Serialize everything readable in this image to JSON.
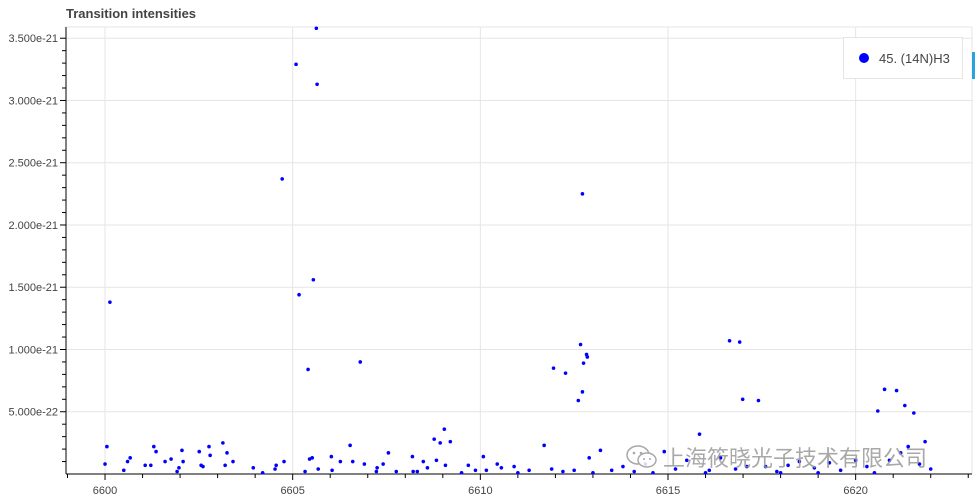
{
  "chart_data": {
    "type": "scatter",
    "title": "Transition intensities",
    "xlabel": "",
    "ylabel": "",
    "xlim": [
      6598.96,
      6623.1
    ],
    "ylim": [
      0,
      3.59e-21
    ],
    "grid": true,
    "legend_placement": "top-right",
    "x_ticks": [
      6600,
      6605,
      6610,
      6615,
      6620
    ],
    "x_tick_labels": [
      "6600",
      "6605",
      "6610",
      "6615",
      "6620"
    ],
    "y_ticks": [
      5e-22,
      1e-21,
      1.5e-21,
      2e-21,
      2.5e-21,
      3e-21,
      3.5e-21
    ],
    "y_tick_labels": [
      "5.000e-22",
      "1.000e-21",
      "1.500e-21",
      "2.000e-21",
      "2.500e-21",
      "3.000e-21",
      "3.500e-21"
    ],
    "series": [
      {
        "name": "45. (14N)H3",
        "color": "#0000ff",
        "points": [
          [
            6600.13,
            1.38e-21
          ],
          [
            6600.05,
            2.2e-22
          ],
          [
            6605.09,
            3.29e-21
          ],
          [
            6605.63,
            3.58e-21
          ],
          [
            6605.65,
            3.13e-21
          ],
          [
            6604.72,
            2.37e-21
          ],
          [
            6605.17,
            1.44e-21
          ],
          [
            6605.55,
            1.56e-21
          ],
          [
            6605.41,
            8.4e-22
          ],
          [
            6606.8,
            9e-22
          ],
          [
            6612.72,
            2.25e-21
          ],
          [
            6611.95,
            8.5e-22
          ],
          [
            6612.27,
            8.1e-22
          ],
          [
            6612.67,
            1.04e-21
          ],
          [
            6612.83,
            9.6e-22
          ],
          [
            6612.85,
            9.4e-22
          ],
          [
            6612.72,
            6.6e-22
          ],
          [
            6612.61,
            5.9e-22
          ],
          [
            6612.75,
            8.9e-22
          ],
          [
            6616.64,
            1.07e-21
          ],
          [
            6616.91,
            1.06e-21
          ],
          [
            6616.99,
            6e-22
          ],
          [
            6617.41,
            5.9e-22
          ],
          [
            6620.59,
            5.06e-22
          ],
          [
            6620.77,
            6.8e-22
          ],
          [
            6621.09,
            6.7e-22
          ],
          [
            6621.31,
            5.5e-22
          ],
          [
            6621.55,
            4.9e-22
          ],
          [
            6615.84,
            3.2e-22
          ],
          [
            6600.0,
            8e-23
          ],
          [
            6600.5,
            3e-23
          ],
          [
            6600.6,
            1e-22
          ],
          [
            6600.67,
            1.3e-22
          ],
          [
            6601.07,
            7e-23
          ],
          [
            6601.22,
            7e-23
          ],
          [
            6601.3,
            2.2e-22
          ],
          [
            6601.36,
            1.8e-22
          ],
          [
            6601.6,
            1e-22
          ],
          [
            6601.76,
            1.2e-22
          ],
          [
            6601.92,
            2e-23
          ],
          [
            6601.97,
            5e-23
          ],
          [
            6602.05,
            1.9e-22
          ],
          [
            6602.08,
            1e-22
          ],
          [
            6602.51,
            1.8e-22
          ],
          [
            6602.56,
            7e-23
          ],
          [
            6602.61,
            6e-23
          ],
          [
            6602.77,
            2.2e-22
          ],
          [
            6602.8,
            1.5e-22
          ],
          [
            6603.14,
            2.5e-22
          ],
          [
            6603.2,
            7e-23
          ],
          [
            6603.25,
            1.7e-22
          ],
          [
            6603.41,
            1e-22
          ],
          [
            6603.95,
            5e-23
          ],
          [
            6604.53,
            4e-23
          ],
          [
            6604.56,
            7e-23
          ],
          [
            6604.77,
            1e-22
          ],
          [
            6605.33,
            2e-23
          ],
          [
            6605.45,
            1.2e-22
          ],
          [
            6605.52,
            1.3e-22
          ],
          [
            6605.68,
            4e-23
          ],
          [
            6606.03,
            1.4e-22
          ],
          [
            6606.05,
            3e-23
          ],
          [
            6606.27,
            1e-22
          ],
          [
            6606.53,
            2.3e-22
          ],
          [
            6606.6,
            1e-22
          ],
          [
            6606.91,
            8e-23
          ],
          [
            6607.23,
            2e-23
          ],
          [
            6607.25,
            5e-23
          ],
          [
            6607.41,
            8e-23
          ],
          [
            6607.55,
            1.7e-22
          ],
          [
            6607.76,
            2e-23
          ],
          [
            6608.19,
            1.4e-22
          ],
          [
            6608.21,
            2e-23
          ],
          [
            6608.32,
            2e-23
          ],
          [
            6608.48,
            1e-22
          ],
          [
            6608.59,
            5e-23
          ],
          [
            6608.77,
            2.8e-22
          ],
          [
            6608.83,
            1.1e-22
          ],
          [
            6608.93,
            2.5e-22
          ],
          [
            6609.04,
            3.6e-22
          ],
          [
            6609.07,
            7e-23
          ],
          [
            6609.2,
            2.6e-22
          ],
          [
            6609.68,
            7e-23
          ],
          [
            6609.87,
            3e-23
          ],
          [
            6610.08,
            1.4e-22
          ],
          [
            6610.16,
            3e-23
          ],
          [
            6610.45,
            8e-23
          ],
          [
            6610.56,
            5e-23
          ],
          [
            6610.9,
            6e-23
          ],
          [
            6611.3,
            3e-23
          ],
          [
            6611.7,
            2.3e-22
          ],
          [
            6611.9,
            4e-23
          ],
          [
            6612.2,
            2e-23
          ],
          [
            6612.5,
            3e-23
          ],
          [
            6612.9,
            1.3e-22
          ],
          [
            6613.2,
            1.9e-22
          ],
          [
            6613.5,
            3e-23
          ],
          [
            6613.8,
            6e-23
          ],
          [
            6614.1,
            2e-23
          ],
          [
            6614.4,
            8e-23
          ],
          [
            6614.9,
            1.8e-22
          ],
          [
            6615.2,
            4e-23
          ],
          [
            6615.5,
            1.1e-22
          ],
          [
            6616.1,
            3e-23
          ],
          [
            6616.4,
            1.3e-22
          ],
          [
            6616.8,
            4e-23
          ],
          [
            6617.1,
            6e-23
          ],
          [
            6617.6,
            6e-23
          ],
          [
            6617.9,
            2e-23
          ],
          [
            6618.2,
            7e-23
          ],
          [
            6618.5,
            1e-22
          ],
          [
            6618.9,
            5e-23
          ],
          [
            6619.3,
            9e-23
          ],
          [
            6619.6,
            3e-23
          ],
          [
            6620.0,
            1.1e-22
          ],
          [
            6620.3,
            6e-23
          ],
          [
            6620.9,
            1.1e-22
          ],
          [
            6621.2,
            1.7e-22
          ],
          [
            6621.4,
            2.2e-22
          ],
          [
            6621.7,
            8e-23
          ],
          [
            6621.85,
            2.6e-22
          ],
          [
            6622.0,
            4e-23
          ],
          [
            6613.0,
            1e-23
          ],
          [
            6614.6,
            1e-23
          ],
          [
            6616.0,
            1e-23
          ],
          [
            6618.0,
            1e-23
          ],
          [
            6619.0,
            1e-23
          ],
          [
            6620.5,
            1e-23
          ],
          [
            6611.0,
            1e-23
          ],
          [
            6609.5,
            1e-23
          ],
          [
            6604.2,
            1e-23
          ]
        ]
      }
    ]
  },
  "watermark": {
    "text": "上海筱晓光子技术有限公司",
    "icon": "wechat-icon"
  }
}
